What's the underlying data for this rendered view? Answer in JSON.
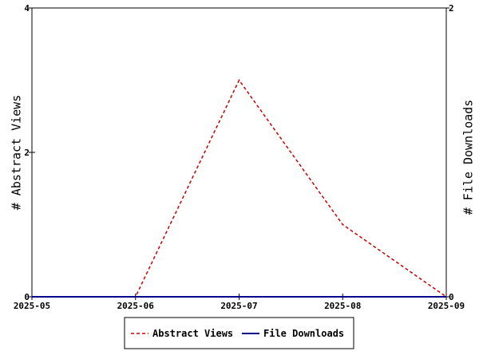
{
  "chart_data": {
    "type": "line",
    "x": [
      "2025-05",
      "2025-06",
      "2025-07",
      "2025-08",
      "2025-09"
    ],
    "x_tick_labels": [
      "2025-05",
      "2025-06",
      "2025-07",
      "2025-08",
      "2025-09"
    ],
    "series": [
      {
        "name": "Abstract Views",
        "axis": "left",
        "values": [
          0,
          0,
          3,
          1,
          0
        ],
        "color": "#cc0000",
        "style": "dashed"
      },
      {
        "name": "File Downloads",
        "axis": "right",
        "values": [
          0,
          0,
          0,
          0,
          0
        ],
        "color": "#00008b",
        "style": "solid"
      }
    ],
    "ylabel": "# Abstract Views",
    "y2label": "# File Downloads",
    "ylim": [
      0,
      4
    ],
    "y_ticks": [
      "0",
      "2",
      "4"
    ],
    "y2lim": [
      0,
      2
    ],
    "y2_ticks": [
      "0",
      "2"
    ],
    "grid": false,
    "legend_position": "bottom-center"
  }
}
